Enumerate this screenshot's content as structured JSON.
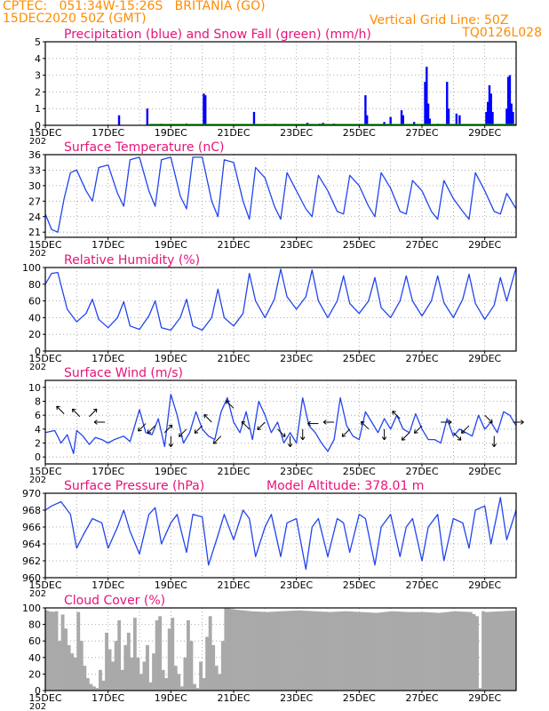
{
  "header": {
    "line1": "CPTEC:   051:34W-15:26S   BRITANIA (GO)",
    "line2": "15DEC2020 50Z (GMT)",
    "grid_note": "Vertical Grid Line: 50Z",
    "code": "TQ0126L028"
  },
  "colors": {
    "header": "#ff8c00",
    "title": "#e8127a",
    "rain": "#0000ff",
    "snow": "#00aa00",
    "line": "#2244ee",
    "cloud": "#a9a9a9",
    "grid": "#999999"
  },
  "x_axis": {
    "labels": [
      "15DEC",
      "17DEC",
      "19DEC",
      "21DEC",
      "23DEC",
      "25DEC",
      "27DEC",
      "29DEC"
    ],
    "year_fragment": "202"
  },
  "chart_data": [
    {
      "id": "precip",
      "type": "bar",
      "title": "Precipitation (blue) and Snow Fall (green) (mm/h)",
      "ylim": [
        0,
        5
      ],
      "yticks": [
        0,
        1,
        2,
        3,
        4,
        5
      ],
      "xlim_days": [
        0,
        15
      ],
      "rain": [
        [
          2.35,
          0.6
        ],
        [
          3.25,
          1.0
        ],
        [
          5.05,
          1.9
        ],
        [
          5.1,
          1.8
        ],
        [
          6.65,
          0.8
        ],
        [
          8.35,
          0.15
        ],
        [
          8.75,
          0.1
        ],
        [
          8.85,
          0.15
        ],
        [
          9.2,
          0.1
        ],
        [
          10.2,
          1.8
        ],
        [
          10.25,
          0.6
        ],
        [
          10.8,
          0.2
        ],
        [
          11.0,
          0.5
        ],
        [
          11.35,
          0.9
        ],
        [
          11.4,
          0.6
        ],
        [
          11.75,
          0.2
        ],
        [
          12.1,
          2.6
        ],
        [
          12.15,
          3.5
        ],
        [
          12.2,
          1.3
        ],
        [
          12.25,
          0.4
        ],
        [
          12.8,
          2.6
        ],
        [
          12.85,
          1.0
        ],
        [
          13.1,
          0.7
        ],
        [
          13.2,
          0.6
        ],
        [
          14.05,
          0.8
        ],
        [
          14.1,
          1.4
        ],
        [
          14.15,
          2.4
        ],
        [
          14.2,
          1.9
        ],
        [
          14.25,
          0.8
        ],
        [
          14.7,
          1.0
        ],
        [
          14.75,
          2.9
        ],
        [
          14.8,
          3.0
        ],
        [
          14.85,
          1.3
        ],
        [
          14.9,
          0.8
        ]
      ],
      "snow": [
        [
          3.7,
          0.1
        ],
        [
          4.5,
          0.12
        ],
        [
          7.3,
          0.1
        ],
        [
          9.5,
          0.08
        ],
        [
          11.0,
          0.1
        ],
        [
          12.5,
          0.1
        ]
      ]
    },
    {
      "id": "temperature",
      "type": "line",
      "title": "Surface Temperature (nC)",
      "ylim": [
        20,
        36
      ],
      "yticks": [
        21,
        24,
        27,
        30,
        33,
        36
      ],
      "x": [
        0,
        0.2,
        0.4,
        0.6,
        0.8,
        1.0,
        1.3,
        1.5,
        1.7,
        2.0,
        2.3,
        2.5,
        2.7,
        3.0,
        3.3,
        3.5,
        3.7,
        4.0,
        4.3,
        4.5,
        4.7,
        5.0,
        5.3,
        5.5,
        5.7,
        6.0,
        6.3,
        6.5,
        6.7,
        7.0,
        7.3,
        7.5,
        7.7,
        8.0,
        8.3,
        8.5,
        8.7,
        9.0,
        9.3,
        9.5,
        9.7,
        10.0,
        10.3,
        10.5,
        10.7,
        11.0,
        11.3,
        11.5,
        11.7,
        12.0,
        12.3,
        12.5,
        12.7,
        13.0,
        13.3,
        13.5,
        13.7,
        14.0,
        14.3,
        14.5,
        14.7,
        15.0
      ],
      "y": [
        24.5,
        21.5,
        21,
        27.5,
        32.5,
        33,
        29,
        27,
        33.5,
        34,
        28.5,
        26,
        35,
        35.5,
        29,
        26,
        35,
        35.5,
        28,
        25.5,
        35.5,
        35.5,
        27,
        24,
        35,
        34.5,
        27,
        23.5,
        33.5,
        31.5,
        26,
        23.5,
        32.5,
        29,
        25.5,
        24,
        32,
        29,
        25,
        24.5,
        32,
        30,
        26,
        24,
        32.5,
        29.5,
        25,
        24.5,
        31,
        29,
        25,
        23.5,
        31,
        27.5,
        25,
        23.5,
        32.5,
        29,
        25,
        24.5,
        28.5,
        25.5
      ]
    },
    {
      "id": "humidity",
      "type": "line",
      "title": "Relative Humidity (%)",
      "ylim": [
        0,
        100
      ],
      "yticks": [
        0,
        20,
        40,
        60,
        80,
        100
      ],
      "x": [
        0,
        0.2,
        0.4,
        0.7,
        1.0,
        1.3,
        1.5,
        1.7,
        2.0,
        2.3,
        2.5,
        2.7,
        3.0,
        3.3,
        3.5,
        3.7,
        4.0,
        4.3,
        4.5,
        4.7,
        5.0,
        5.3,
        5.5,
        5.7,
        6.0,
        6.3,
        6.5,
        6.7,
        7.0,
        7.3,
        7.5,
        7.7,
        8.0,
        8.3,
        8.5,
        8.7,
        9.0,
        9.3,
        9.5,
        9.7,
        10.0,
        10.3,
        10.5,
        10.7,
        11.0,
        11.3,
        11.5,
        11.7,
        12.0,
        12.3,
        12.5,
        12.7,
        13.0,
        13.3,
        13.5,
        13.7,
        14.0,
        14.3,
        14.5,
        14.7,
        15.0
      ],
      "y": [
        80,
        93,
        94,
        50,
        35,
        45,
        62,
        38,
        28,
        40,
        59,
        30,
        26,
        42,
        60,
        28,
        25,
        40,
        62,
        30,
        25,
        40,
        74,
        40,
        30,
        45,
        93,
        60,
        40,
        62,
        98,
        65,
        50,
        65,
        97,
        60,
        40,
        60,
        90,
        57,
        45,
        60,
        88,
        52,
        40,
        60,
        90,
        60,
        42,
        60,
        90,
        58,
        40,
        62,
        92,
        57,
        38,
        55,
        88,
        60,
        100
      ]
    },
    {
      "id": "wind",
      "type": "line",
      "title": "Surface Wind (m/s)",
      "ylim": [
        -1,
        11
      ],
      "yticks": [
        0,
        2,
        4,
        6,
        8,
        10
      ],
      "x": [
        0,
        0.3,
        0.5,
        0.7,
        0.9,
        1.0,
        1.2,
        1.4,
        1.6,
        1.8,
        2.0,
        2.2,
        2.5,
        2.7,
        3.0,
        3.2,
        3.4,
        3.6,
        3.8,
        4.0,
        4.2,
        4.4,
        4.6,
        4.8,
        5.0,
        5.2,
        5.4,
        5.6,
        5.8,
        6.0,
        6.2,
        6.4,
        6.6,
        6.8,
        7.0,
        7.2,
        7.4,
        7.6,
        7.8,
        8.0,
        8.2,
        8.4,
        8.6,
        8.8,
        9.0,
        9.2,
        9.4,
        9.6,
        9.8,
        10.0,
        10.2,
        10.4,
        10.6,
        10.8,
        11.0,
        11.2,
        11.4,
        11.6,
        11.8,
        12.0,
        12.2,
        12.4,
        12.6,
        12.8,
        13.0,
        13.2,
        13.4,
        13.6,
        13.8,
        14.0,
        14.2,
        14.4,
        14.6,
        14.8,
        15.0
      ],
      "y": [
        3.5,
        3.8,
        2.0,
        3.2,
        0.5,
        3.8,
        3.0,
        1.8,
        2.8,
        2.5,
        2.0,
        2.5,
        3.0,
        2.2,
        6.8,
        3.5,
        3.2,
        5.5,
        1.5,
        9.0,
        6.0,
        2.0,
        3.5,
        6.5,
        4.0,
        3.0,
        2.5,
        6.5,
        8.5,
        5.0,
        3.5,
        6.5,
        2.5,
        8.0,
        6.0,
        3.5,
        5.0,
        2.0,
        3.5,
        2.0,
        8.5,
        4.5,
        3.5,
        2.0,
        0.8,
        2.5,
        8.5,
        4.5,
        3.0,
        2.5,
        6.5,
        5.0,
        3.5,
        5.5,
        4.0,
        6.0,
        4.0,
        3.5,
        6.2,
        4.0,
        2.5,
        2.5,
        2.0,
        5.5,
        3.0,
        4.0,
        3.5,
        3.0,
        6.0,
        4.0,
        5.0,
        3.5,
        6.5,
        6.0,
        4.5
      ]
    },
    {
      "id": "pressure",
      "type": "line",
      "title": "Surface Pressure (hPa)",
      "annotation": "Model Altitude: 378.01 m",
      "ylim": [
        960,
        970
      ],
      "yticks": [
        960,
        962,
        964,
        966,
        968,
        970
      ],
      "x": [
        0,
        0.2,
        0.5,
        0.8,
        1.0,
        1.2,
        1.5,
        1.8,
        2.0,
        2.3,
        2.5,
        2.7,
        3.0,
        3.3,
        3.5,
        3.7,
        4.0,
        4.2,
        4.5,
        4.7,
        5.0,
        5.2,
        5.5,
        5.7,
        6.0,
        6.3,
        6.5,
        6.7,
        7.0,
        7.2,
        7.5,
        7.7,
        8.0,
        8.3,
        8.5,
        8.7,
        9.0,
        9.3,
        9.5,
        9.7,
        10.0,
        10.2,
        10.5,
        10.7,
        11.0,
        11.3,
        11.5,
        11.7,
        12.0,
        12.2,
        12.5,
        12.7,
        13.0,
        13.3,
        13.5,
        13.7,
        14.0,
        14.2,
        14.5,
        14.7,
        15.0
      ],
      "y": [
        968,
        968.5,
        969,
        967.5,
        963.5,
        965,
        967,
        966.5,
        963.5,
        966,
        968,
        965.5,
        962.8,
        967.5,
        968.3,
        964,
        966.5,
        967.5,
        963,
        967.5,
        967.2,
        961.5,
        965,
        967.5,
        964.5,
        968,
        967,
        962.5,
        966,
        967.5,
        962.5,
        966.5,
        967,
        961,
        966,
        967,
        962.5,
        967,
        966.5,
        963,
        967.5,
        967,
        961.5,
        966,
        967.5,
        962.5,
        966,
        967,
        962,
        966,
        967.5,
        962,
        967,
        966.5,
        963.5,
        968,
        968.5,
        964,
        969.5,
        964.5,
        968
      ]
    },
    {
      "id": "cloud",
      "type": "area",
      "title": "Cloud Cover (%)",
      "ylim": [
        0,
        100
      ],
      "yticks": [
        0,
        20,
        40,
        60,
        80,
        100
      ],
      "x": [
        0,
        0.15,
        0.3,
        0.4,
        0.5,
        0.6,
        0.7,
        0.8,
        0.9,
        1.0,
        1.1,
        1.2,
        1.3,
        1.4,
        1.5,
        1.6,
        1.7,
        1.8,
        1.9,
        2.0,
        2.1,
        2.2,
        2.3,
        2.4,
        2.5,
        2.6,
        2.7,
        2.8,
        2.9,
        3.0,
        3.1,
        3.2,
        3.3,
        3.4,
        3.5,
        3.6,
        3.7,
        3.8,
        3.9,
        4.0,
        4.1,
        4.2,
        4.3,
        4.4,
        4.5,
        4.6,
        4.7,
        4.8,
        4.9,
        5.0,
        5.1,
        5.2,
        5.3,
        5.4,
        5.5,
        5.7,
        6.0,
        6.5,
        7.0,
        7.5,
        8.0,
        8.5,
        9.0,
        9.5,
        10.0,
        10.5,
        11.0,
        11.5,
        12.0,
        12.5,
        13.0,
        13.5,
        13.7,
        13.8,
        13.9,
        14.0,
        14.5,
        15.0
      ],
      "y": [
        97,
        95,
        96,
        60,
        92,
        75,
        55,
        45,
        40,
        95,
        60,
        30,
        15,
        8,
        5,
        3,
        25,
        12,
        70,
        50,
        35,
        60,
        85,
        25,
        55,
        70,
        40,
        88,
        40,
        20,
        35,
        55,
        10,
        45,
        85,
        90,
        25,
        15,
        75,
        88,
        30,
        20,
        5,
        40,
        85,
        60,
        8,
        3,
        35,
        15,
        65,
        90,
        55,
        30,
        20,
        100,
        98,
        96,
        95,
        96,
        97,
        96,
        95,
        96,
        95,
        94,
        96,
        95,
        95,
        94,
        96,
        95,
        90,
        3,
        96,
        95,
        96,
        97
      ]
    }
  ]
}
